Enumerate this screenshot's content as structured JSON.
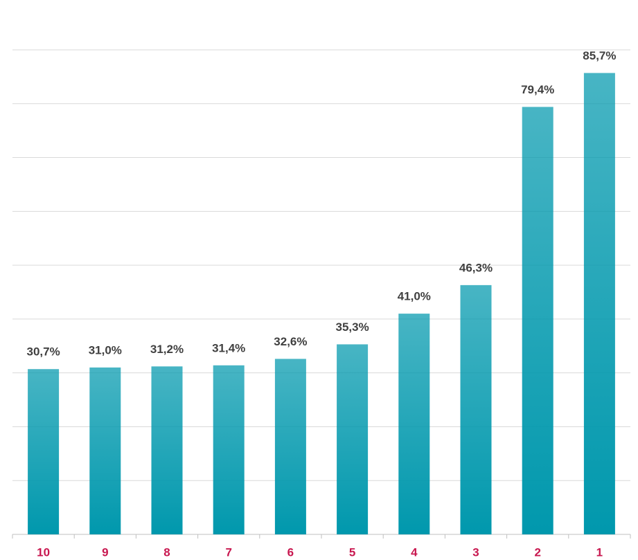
{
  "chart_data": {
    "type": "bar",
    "categories": [
      "10",
      "9",
      "8",
      "7",
      "6",
      "5",
      "4",
      "3",
      "2",
      "1"
    ],
    "values": [
      30.7,
      31.0,
      31.2,
      31.4,
      32.6,
      35.3,
      41.0,
      46.3,
      79.4,
      85.7
    ],
    "value_labels": [
      "30,7%",
      "31,0%",
      "31,2%",
      "31,4%",
      "32,6%",
      "35,3%",
      "41,0%",
      "46,3%",
      "79,4%",
      "85,7%"
    ],
    "color": "#0098ad",
    "ylim": [
      0,
      90
    ],
    "yticks": [
      0,
      10,
      20,
      30,
      40,
      50,
      60,
      70,
      80,
      90
    ],
    "grid": true
  }
}
